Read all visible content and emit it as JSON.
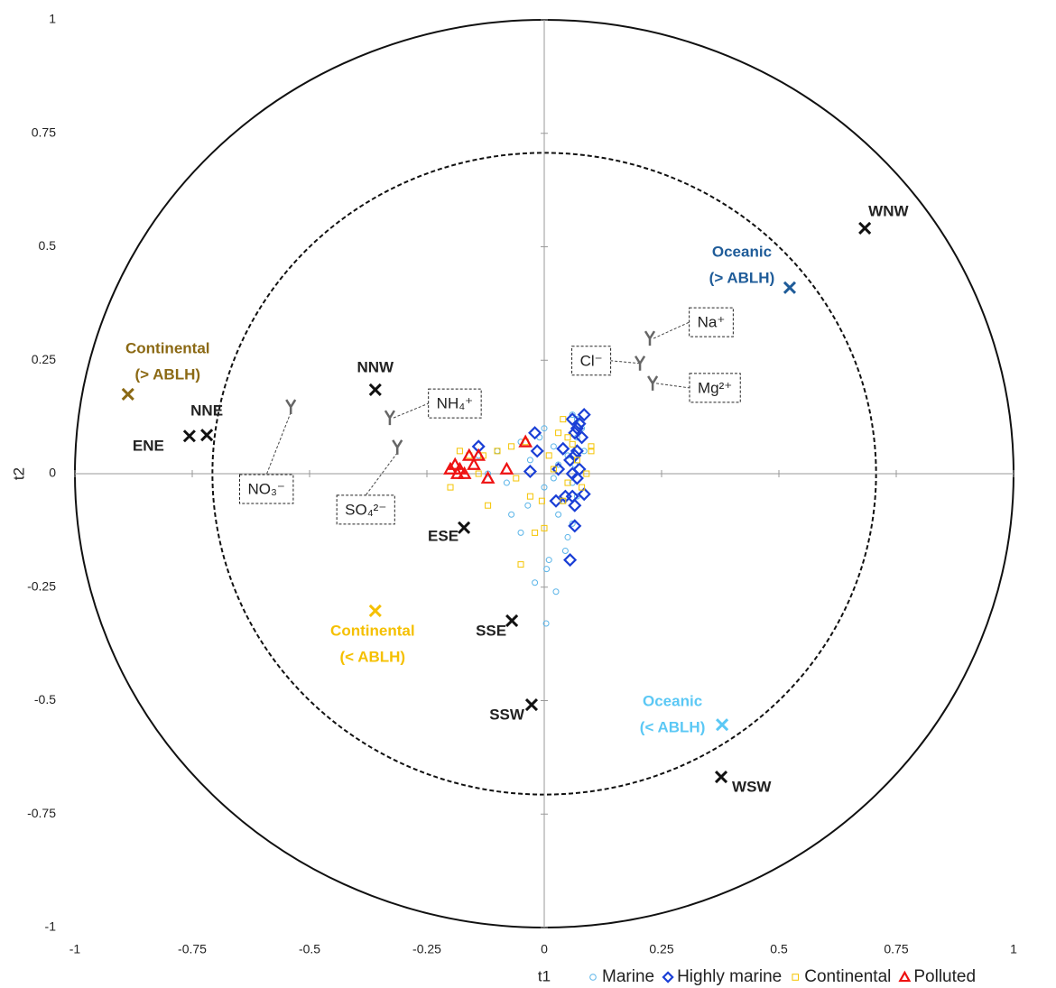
{
  "chart_data": {
    "type": "scatter",
    "xlabel": "t1",
    "ylabel": "t2",
    "xlim": [
      -1,
      1
    ],
    "ylim": [
      -1,
      1
    ],
    "xticks": [
      -1,
      -0.75,
      -0.5,
      -0.25,
      0,
      0.25,
      0.5,
      0.75,
      1
    ],
    "yticks": [
      -1,
      -0.75,
      -0.5,
      -0.25,
      0,
      0.25,
      0.5,
      0.75,
      1
    ],
    "circles": [
      {
        "r": 1,
        "style": "solid"
      },
      {
        "r": 0.707,
        "style": "dashed"
      }
    ],
    "legend": "bottom-right",
    "series": [
      {
        "name": "Marine",
        "color": "#5ab4e8",
        "marker": "circle",
        "x": [
          0.004,
          0.025,
          -0.02,
          0.01,
          0.005,
          0.045,
          -0.05,
          -0.07,
          -0.035,
          0.03,
          0.05,
          0.06,
          0.07,
          0.085,
          0.08,
          0.07,
          0.06,
          0.0,
          -0.01,
          0.02,
          -0.05,
          -0.1,
          -0.14,
          -0.12,
          -0.08,
          0.0,
          0.03,
          0.05,
          0.06,
          0.04,
          0.07,
          0.065,
          -0.03,
          0.02
        ],
        "values": [
          -0.33,
          -0.26,
          -0.24,
          -0.19,
          -0.21,
          -0.17,
          -0.13,
          -0.09,
          -0.07,
          -0.09,
          -0.14,
          -0.11,
          -0.05,
          0.05,
          0.1,
          0.12,
          0.13,
          0.1,
          0.08,
          0.06,
          0.07,
          0.05,
          0.04,
          0.0,
          -0.02,
          -0.03,
          0.02,
          0.04,
          -0.02,
          -0.06,
          0.08,
          0.02,
          0.03,
          -0.01
        ]
      },
      {
        "name": "Highly marine",
        "color": "#1a3fd6",
        "marker": "diamond",
        "x": [
          0.085,
          0.075,
          0.065,
          0.08,
          0.07,
          0.06,
          0.07,
          0.065,
          0.075,
          0.07,
          0.085,
          0.06,
          0.065,
          0.065,
          0.055,
          0.025,
          0.045,
          0.03,
          0.04,
          -0.015,
          -0.03,
          -0.14,
          -0.02,
          0.06,
          0.055
        ],
        "values": [
          0.13,
          0.11,
          0.09,
          0.08,
          0.1,
          0.12,
          0.05,
          0.04,
          0.01,
          -0.01,
          -0.045,
          -0.05,
          -0.07,
          -0.115,
          -0.19,
          -0.06,
          -0.05,
          0.01,
          0.055,
          0.05,
          0.005,
          0.06,
          0.09,
          0.0,
          0.03
        ]
      },
      {
        "name": "Continental",
        "color": "#f5c400",
        "marker": "square",
        "x": [
          -0.05,
          -0.02,
          0.0,
          0.04,
          0.06,
          0.05,
          0.03,
          0.1,
          0.1,
          0.09,
          0.02,
          -0.005,
          -0.03,
          -0.12,
          -0.2,
          -0.18,
          -0.16,
          -0.13,
          -0.1,
          -0.07,
          -0.04,
          0.04,
          0.05,
          -0.06,
          0.07,
          0.01,
          -0.14,
          0.08
        ],
        "values": [
          -0.2,
          -0.13,
          -0.12,
          -0.06,
          0.065,
          0.08,
          0.09,
          0.06,
          0.05,
          0.0,
          0.01,
          -0.06,
          -0.05,
          -0.07,
          -0.03,
          0.05,
          0.04,
          0.04,
          0.05,
          0.06,
          0.07,
          0.12,
          -0.02,
          -0.01,
          0.03,
          0.04,
          0.0,
          -0.03
        ]
      },
      {
        "name": "Polluted",
        "color": "#ee1111",
        "marker": "triangle",
        "x": [
          -0.2,
          -0.19,
          -0.18,
          -0.17,
          -0.16,
          -0.14,
          -0.12,
          -0.15,
          -0.08,
          -0.04,
          -0.185
        ],
        "values": [
          0.01,
          0.02,
          0.01,
          0.0,
          0.04,
          0.04,
          -0.01,
          0.02,
          0.01,
          0.07,
          0.0
        ]
      }
    ],
    "variables": [
      {
        "label": "Na⁺",
        "x": 0.225,
        "y": 0.298
      },
      {
        "label": "Cl⁻",
        "x": 0.204,
        "y": 0.243
      },
      {
        "label": "Mg²⁺",
        "x": 0.231,
        "y": 0.199
      },
      {
        "label": "NH₄⁺",
        "x": -0.329,
        "y": 0.123
      },
      {
        "label": "SO₄²⁻",
        "x": -0.313,
        "y": 0.058
      },
      {
        "label": "NO₃⁻",
        "x": -0.54,
        "y": 0.147
      }
    ],
    "directions": [
      {
        "label": "WNW",
        "x": 0.683,
        "y": 0.541
      },
      {
        "label": "NNW",
        "x": -0.36,
        "y": 0.185
      },
      {
        "label": "NNE",
        "x": -0.719,
        "y": 0.085
      },
      {
        "label": "ENE",
        "x": -0.756,
        "y": 0.083
      },
      {
        "label": "ESE",
        "x": -0.171,
        "y": -0.119
      },
      {
        "label": "SSE",
        "x": -0.069,
        "y": -0.324
      },
      {
        "label": "SSW",
        "x": -0.027,
        "y": -0.509
      },
      {
        "label": "WSW",
        "x": 0.377,
        "y": -0.668
      }
    ],
    "groups": [
      {
        "label": [
          "Oceanic",
          "(> ABLH)"
        ],
        "color": "#1f5c99",
        "x": 0.523,
        "y": 0.41
      },
      {
        "label": [
          "Continental",
          "(> ABLH)"
        ],
        "color": "#8b6914",
        "x": -0.887,
        "y": 0.175
      },
      {
        "label": [
          "Continental",
          "(< ABLH)"
        ],
        "color": "#f5c000",
        "x": -0.36,
        "y": -0.302
      },
      {
        "label": [
          "Oceanic",
          "(< ABLH)"
        ],
        "color": "#5bc8f5",
        "x": 0.379,
        "y": -0.553
      }
    ]
  }
}
